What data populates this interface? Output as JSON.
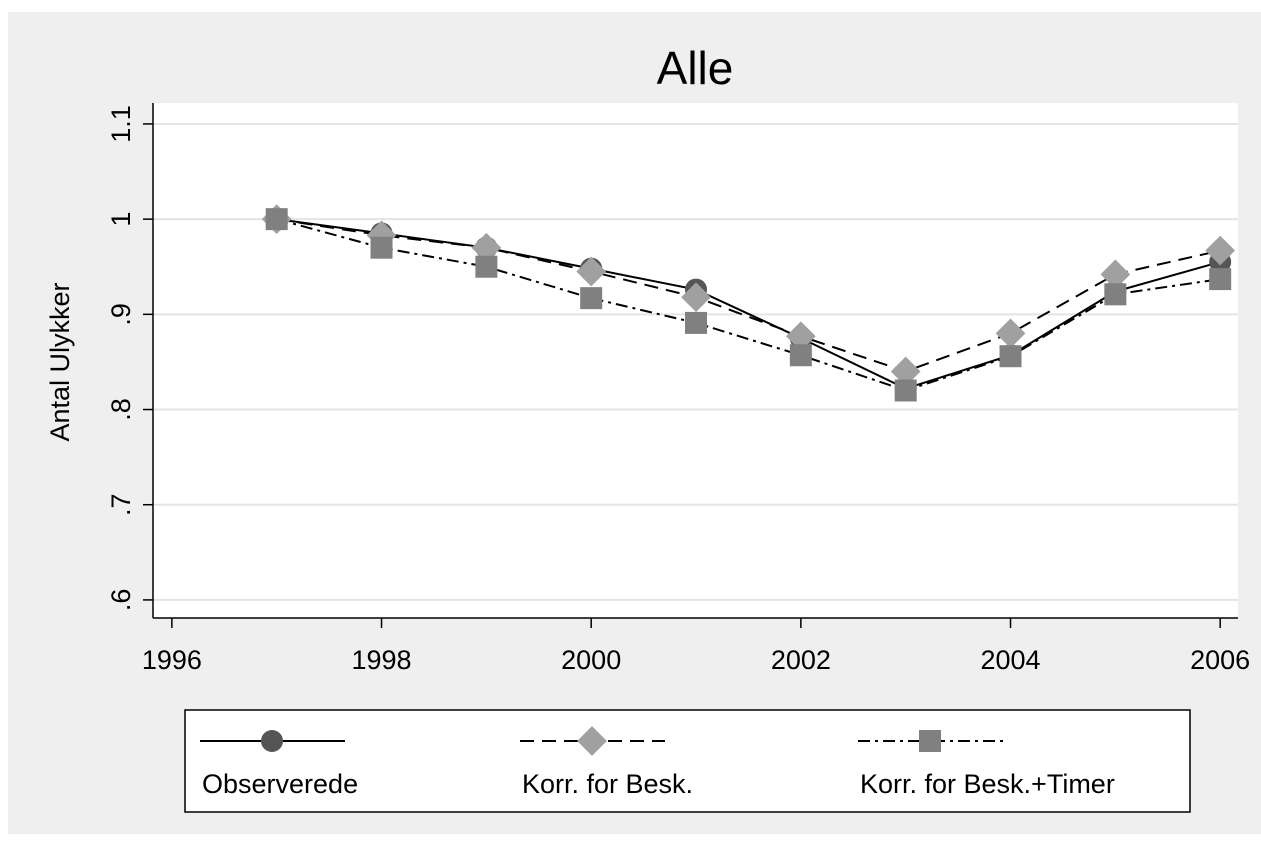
{
  "chart_data": {
    "type": "line",
    "title": "Alle",
    "y_label": "Antal Ulykker",
    "x": [
      1997,
      1998,
      1999,
      2000,
      2001,
      2002,
      2003,
      2004,
      2005,
      2006
    ],
    "series": [
      {
        "name": "Observerede",
        "color": "#555555",
        "marker": "circle",
        "linestyle": "solid",
        "values": [
          1.0,
          0.985,
          0.97,
          0.948,
          0.926,
          0.875,
          0.822,
          0.857,
          0.924,
          0.955
        ]
      },
      {
        "name": "Korr. for Besk.",
        "color": "#a0a0a0",
        "marker": "diamond",
        "linestyle": "dashed",
        "values": [
          1.0,
          0.983,
          0.97,
          0.945,
          0.918,
          0.877,
          0.84,
          0.88,
          0.942,
          0.967
        ]
      },
      {
        "name": "Korr. for Besk.+Timer",
        "color": "#808080",
        "marker": "square",
        "linestyle": "dashdot",
        "values": [
          1.0,
          0.97,
          0.95,
          0.917,
          0.891,
          0.857,
          0.82,
          0.856,
          0.921,
          0.937
        ]
      }
    ],
    "xlim": [
      1995.82,
      2006.17
    ],
    "xticks": [
      1996,
      1998,
      2000,
      2002,
      2004,
      2006
    ],
    "ylim": [
      0.581,
      1.122
    ],
    "yticks": [
      {
        "value": 0.6,
        "label": ".6"
      },
      {
        "value": 0.7,
        "label": ".7"
      },
      {
        "value": 0.8,
        "label": ".8"
      },
      {
        "value": 0.9,
        "label": ".9"
      },
      1,
      1.1
    ],
    "grid": true,
    "legend": "bottom"
  }
}
